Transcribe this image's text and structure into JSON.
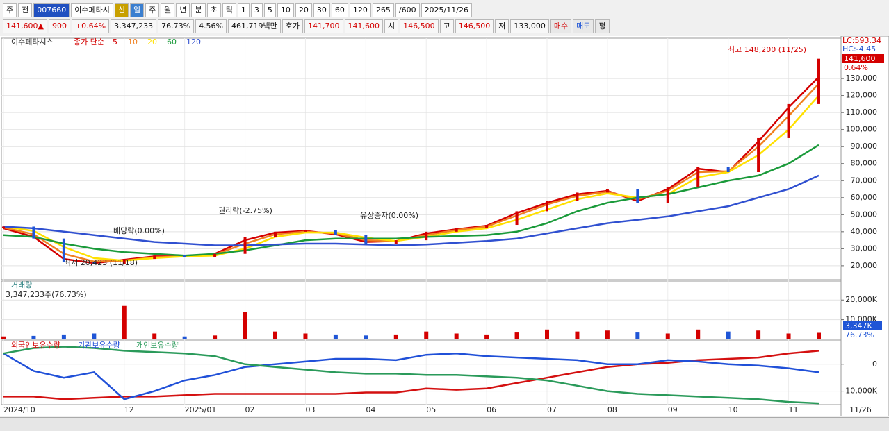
{
  "toolbar": {
    "items": [
      "주",
      "전",
      "007660",
      "이수페타시",
      "신",
      "일",
      "주",
      "월",
      "년",
      "분",
      "초",
      "틱",
      "1",
      "3",
      "5",
      "10",
      "20",
      "30",
      "60",
      "120",
      "265",
      "/600",
      "2025/11/26"
    ]
  },
  "quote": {
    "items": [
      "141,600▲",
      "900",
      "+0.64%",
      "3,347,233",
      "76.73%",
      "4.56%",
      "461,719백만",
      "호가",
      "141,700",
      "141,600",
      "시",
      "146,500",
      "고",
      "146,500",
      "저",
      "133,000",
      "매수",
      "매도",
      "평"
    ]
  },
  "chart_data": [
    {
      "type": "line",
      "title": "이수페타시스",
      "legend_title": "종가 단순",
      "categories": [
        "2024/10",
        null,
        null,
        null,
        "12",
        null,
        "2025/01",
        null,
        "02",
        null,
        "03",
        null,
        "04",
        null,
        "05",
        null,
        "06",
        null,
        "07",
        null,
        "08",
        null,
        "09",
        null,
        "10",
        null,
        "11",
        null
      ],
      "end_label": "11/26",
      "close_color": "#d40000",
      "values": [
        43000,
        36000,
        22000,
        21000,
        24000,
        26000,
        25000,
        27000,
        37000,
        40000,
        41000,
        38000,
        33000,
        35000,
        40000,
        42000,
        44000,
        52000,
        58000,
        63000,
        65000,
        57000,
        66000,
        78000,
        75000,
        95000,
        115000,
        141600
      ],
      "series": [
        {
          "name": "5",
          "color": "#d40000",
          "values": [
            42000,
            37000,
            24000,
            21500,
            23500,
            25500,
            25500,
            27000,
            35000,
            39500,
            40500,
            38500,
            34000,
            34500,
            39000,
            41500,
            43500,
            51000,
            57000,
            62000,
            64000,
            58000,
            65000,
            77000,
            75000,
            93000,
            113000,
            131000
          ]
        },
        {
          "name": "10",
          "color": "#f08020",
          "values": [
            42500,
            38500,
            27000,
            22500,
            23000,
            25000,
            25500,
            26500,
            33000,
            38500,
            40000,
            39000,
            35000,
            34500,
            38000,
            41000,
            43000,
            49500,
            56000,
            61000,
            63500,
            59000,
            64000,
            75000,
            75500,
            90000,
            108000,
            127000
          ]
        },
        {
          "name": "20",
          "color": "#ffe000",
          "values": [
            43000,
            40500,
            31000,
            24500,
            23000,
            24500,
            25500,
            26000,
            30000,
            37000,
            39500,
            39500,
            36500,
            34500,
            37000,
            40000,
            42000,
            47000,
            53000,
            59000,
            62500,
            60000,
            62000,
            72000,
            75000,
            85000,
            100000,
            120000
          ]
        },
        {
          "name": "60",
          "color": "#1a9a3a",
          "values": [
            38000,
            37000,
            33000,
            30000,
            28000,
            27000,
            26000,
            27000,
            29000,
            32000,
            35000,
            36000,
            36000,
            36000,
            37000,
            37500,
            38000,
            40000,
            45000,
            52000,
            57000,
            60000,
            62000,
            66000,
            70000,
            73000,
            80000,
            91000
          ]
        },
        {
          "name": "120",
          "color": "#3050d0",
          "values": [
            43000,
            42000,
            40000,
            38000,
            36000,
            34000,
            33000,
            32000,
            32000,
            32500,
            33000,
            33000,
            32500,
            32000,
            32500,
            33500,
            34500,
            36000,
            39000,
            42000,
            45000,
            47000,
            49000,
            52000,
            55000,
            60000,
            65000,
            73000
          ]
        }
      ],
      "ylim": [
        11800,
        153700
      ],
      "yticks": [
        {
          "value": 20000,
          "label": "20,000"
        },
        {
          "value": 30000,
          "label": "30,000"
        },
        {
          "value": 40000,
          "label": "40,000"
        },
        {
          "value": 50000,
          "label": "50,000"
        },
        {
          "value": 60000,
          "label": "60,000"
        },
        {
          "value": 70000,
          "label": "70,000"
        },
        {
          "value": 80000,
          "label": "80,000"
        },
        {
          "value": 90000,
          "label": "90,000"
        },
        {
          "value": 100000,
          "label": "100,000"
        },
        {
          "value": 110000,
          "label": "110,000"
        },
        {
          "value": 120000,
          "label": "120,000"
        },
        {
          "value": 130000,
          "label": "130,000"
        }
      ],
      "grid": true,
      "annotations": [
        "최고 148,200 (11/25)",
        "최저 20,423 (11/18)",
        "배당락(0.00%)",
        "권리락(-2.75%)",
        "유상증자(0.00%)"
      ],
      "side_labels": [
        "LC:593.34",
        "HC:-4.45",
        "141,600",
        "0.64%"
      ]
    },
    {
      "type": "bar",
      "title": "거래량",
      "subtitle": "3,347,233주(76.73%)",
      "values": [
        1500,
        1800,
        2500,
        3000,
        17000,
        3000,
        1500,
        2000,
        14000,
        4000,
        3000,
        2500,
        2000,
        2500,
        4000,
        3000,
        2500,
        3500,
        5000,
        4000,
        4500,
        3500,
        3000,
        5000,
        4000,
        4500,
        3000,
        3347
      ],
      "up_color": "#d40000",
      "down_color": "#1f55d6",
      "ylim": [
        0,
        29600
      ],
      "yticks": [
        {
          "value": 10000,
          "label": "10,000K"
        },
        {
          "value": 20000,
          "label": "20,000K"
        }
      ],
      "side_labels": [
        "3,347K",
        "76.73%"
      ]
    },
    {
      "type": "line",
      "series": [
        {
          "name": "외국인보유수량",
          "color": "#d41010",
          "values": [
            -12000,
            -12000,
            -13000,
            -12500,
            -12000,
            -12000,
            -11500,
            -11000,
            -11000,
            -11000,
            -11000,
            -11000,
            -10500,
            -10500,
            -9000,
            -9500,
            -9000,
            -7000,
            -5000,
            -3000,
            -1000,
            0,
            500,
            1500,
            2000,
            2500,
            4000,
            5000
          ]
        },
        {
          "name": "기관보유수량",
          "color": "#2050d8",
          "values": [
            4000,
            -2500,
            -5000,
            -3000,
            -13000,
            -10000,
            -6000,
            -4000,
            -1000,
            0,
            1000,
            2000,
            2000,
            1500,
            3500,
            4000,
            3000,
            2500,
            2000,
            1500,
            0,
            0,
            1500,
            1000,
            0,
            -500,
            -1500,
            -3000
          ]
        },
        {
          "name": "개인보유수량",
          "color": "#2a9a5a",
          "values": [
            4000,
            6000,
            6500,
            6000,
            5000,
            4500,
            4000,
            3000,
            0,
            -1000,
            -2000,
            -3000,
            -3500,
            -3500,
            -4000,
            -4000,
            -4500,
            -5000,
            -6000,
            -8000,
            -10000,
            -11000,
            -11500,
            -12000,
            -12500,
            -13000,
            -14000,
            -14500
          ]
        }
      ],
      "ylim": [
        -15000,
        8700
      ],
      "yticks": [
        0,
        {
          "value": -10000,
          "label": "-10,000K"
        }
      ]
    }
  ]
}
